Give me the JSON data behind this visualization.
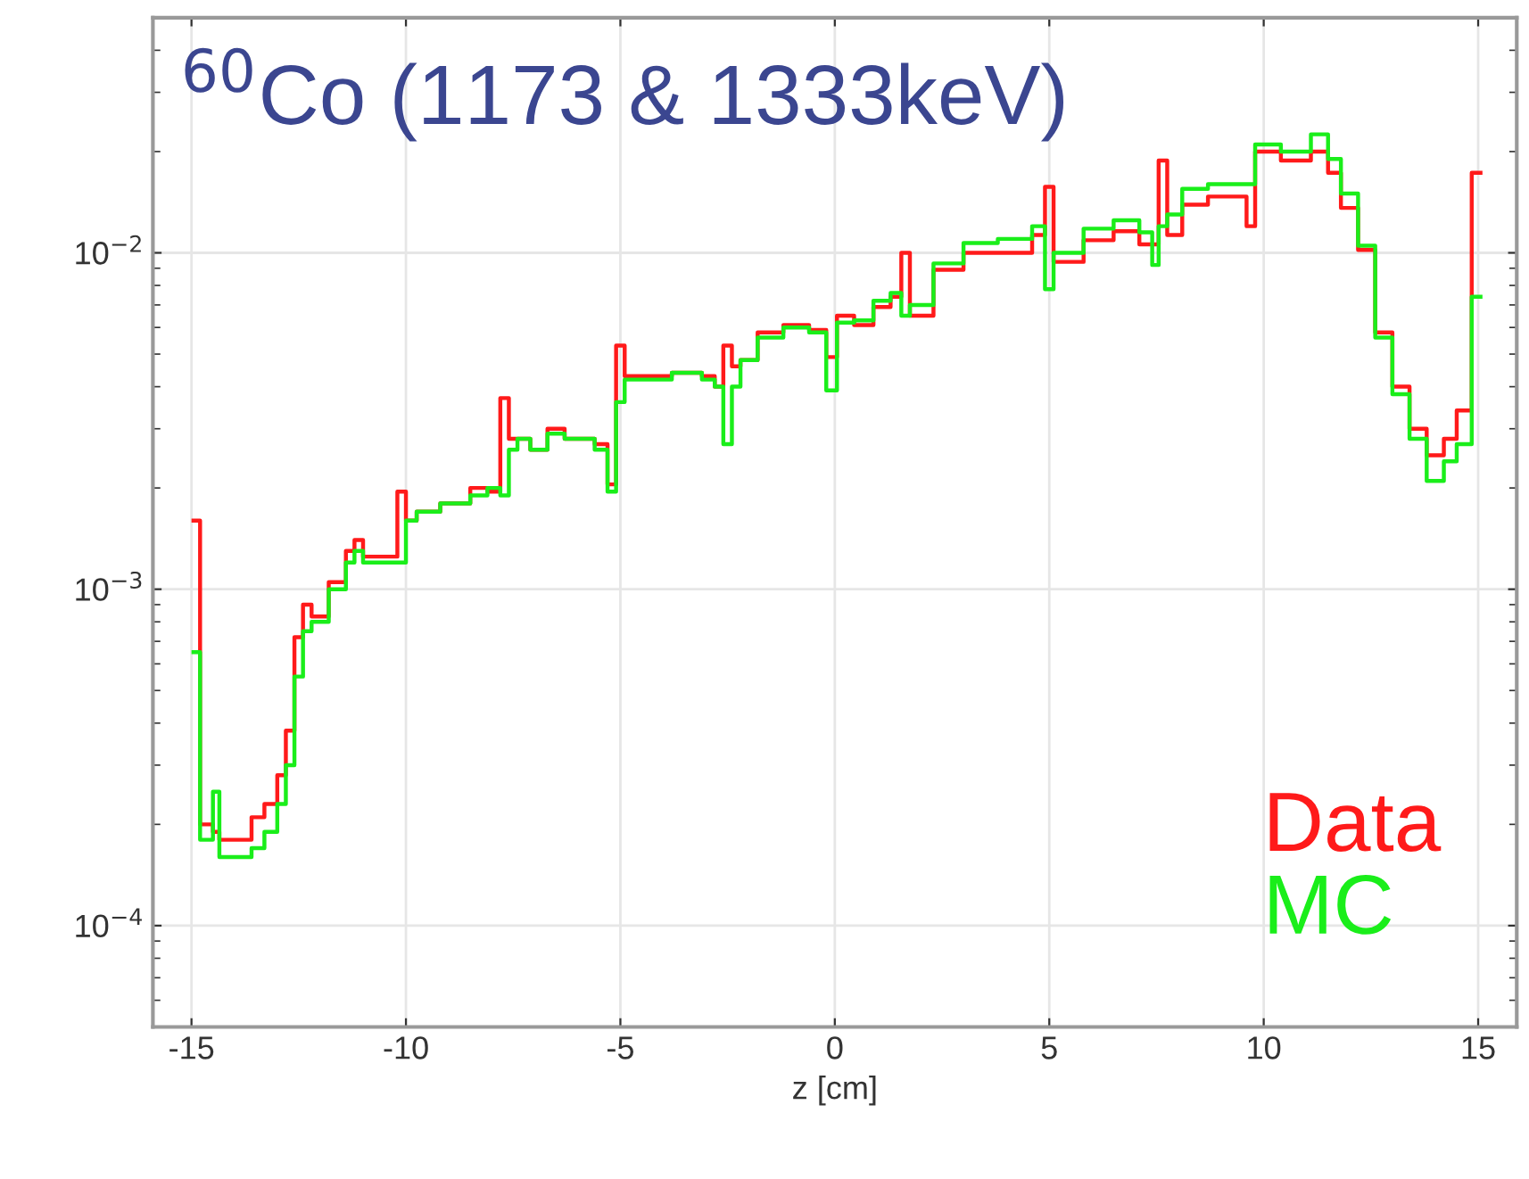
{
  "chart_data": {
    "type": "histogram",
    "title": "$^{60}$Co (1173 & 1333keV)",
    "xlabel": "z [cm]",
    "bins": [
      -15.0,
      -14.8,
      -14.5,
      -14.35,
      -14.1,
      -13.6,
      -13.3,
      -13.0,
      -12.8,
      -12.6,
      -12.4,
      -12.2,
      -11.8,
      -11.4,
      -11.2,
      -11.0,
      -10.2,
      -10.0,
      -9.75,
      -9.2,
      -8.5,
      -8.1,
      -7.8,
      -7.6,
      -7.4,
      -7.1,
      -6.7,
      -6.3,
      -5.6,
      -5.3,
      -5.1,
      -4.9,
      -4.4,
      -3.8,
      -3.1,
      -2.8,
      -2.6,
      -2.4,
      -2.2,
      -1.8,
      -1.2,
      -0.6,
      -0.2,
      0.05,
      0.45,
      0.9,
      1.3,
      1.55,
      1.75,
      2.3,
      3.0,
      3.8,
      4.6,
      4.9,
      5.1,
      5.8,
      6.5,
      7.1,
      7.4,
      7.55,
      7.75,
      8.1,
      8.7,
      9.6,
      9.8,
      10.4,
      11.1,
      11.5,
      11.8,
      12.2,
      12.6,
      13.0,
      13.4,
      13.8,
      14.2,
      14.5,
      14.85,
      15.1
    ],
    "series": [
      {
        "name": "Data",
        "color": "#ff1a1a",
        "values": [
          0.0016,
          0.0002,
          0.00019,
          0.00018,
          0.00018,
          0.00021,
          0.00023,
          0.00028,
          0.00038,
          0.00072,
          0.0009,
          0.00083,
          0.00105,
          0.0013,
          0.0014,
          0.00125,
          0.00195,
          0.0016,
          0.0017,
          0.0018,
          0.002,
          0.00195,
          0.0037,
          0.0028,
          0.0028,
          0.0026,
          0.003,
          0.0028,
          0.0027,
          0.00205,
          0.0053,
          0.0043,
          0.0043,
          0.0044,
          0.0043,
          0.004,
          0.0053,
          0.0046,
          0.0048,
          0.0058,
          0.0061,
          0.0059,
          0.0049,
          0.0065,
          0.0061,
          0.0069,
          0.0074,
          0.01,
          0.0065,
          0.0089,
          0.01,
          0.01,
          0.0113,
          0.0157,
          0.0094,
          0.0109,
          0.0116,
          0.0106,
          0.0106,
          0.0188,
          0.0113,
          0.0139,
          0.0147,
          0.012,
          0.02,
          0.0188,
          0.02,
          0.0173,
          0.0136,
          0.0102,
          0.0058,
          0.004,
          0.003,
          0.0025,
          0.0028,
          0.0034,
          0.0173
        ]
      },
      {
        "name": "MC",
        "color": "#1aee1a",
        "values": [
          0.00065,
          0.00018,
          0.00025,
          0.00016,
          0.00016,
          0.00017,
          0.00019,
          0.00023,
          0.0003,
          0.00055,
          0.00075,
          0.0008,
          0.001,
          0.0012,
          0.0013,
          0.0012,
          0.0012,
          0.0016,
          0.0017,
          0.0018,
          0.0019,
          0.002,
          0.0019,
          0.0026,
          0.0028,
          0.0026,
          0.0029,
          0.0028,
          0.0026,
          0.00195,
          0.0036,
          0.0042,
          0.0042,
          0.0044,
          0.0042,
          0.004,
          0.0027,
          0.004,
          0.0048,
          0.0056,
          0.006,
          0.0058,
          0.0039,
          0.0062,
          0.0063,
          0.0072,
          0.0076,
          0.0065,
          0.007,
          0.0093,
          0.0107,
          0.011,
          0.012,
          0.0078,
          0.01,
          0.0118,
          0.0125,
          0.0115,
          0.0092,
          0.012,
          0.013,
          0.0155,
          0.016,
          0.016,
          0.021,
          0.02,
          0.0225,
          0.019,
          0.015,
          0.0105,
          0.0056,
          0.0038,
          0.0028,
          0.0021,
          0.0024,
          0.0027,
          0.0074
        ]
      }
    ],
    "log": "y",
    "xlim": [
      -15.9,
      15.9
    ],
    "xticks": [
      -15,
      -10,
      -5,
      0,
      5,
      10,
      15
    ],
    "ylim": [
      5e-05,
      0.05
    ],
    "yticks": [
      {
        "value": 0.0001,
        "label": "10$^{−4}$"
      },
      {
        "value": 0.001,
        "label": "10$^{−3}$"
      },
      {
        "value": 0.01,
        "label": "10$^{−2}$"
      }
    ],
    "grid": true,
    "legend": "bottom right",
    "line_style": "solid"
  }
}
